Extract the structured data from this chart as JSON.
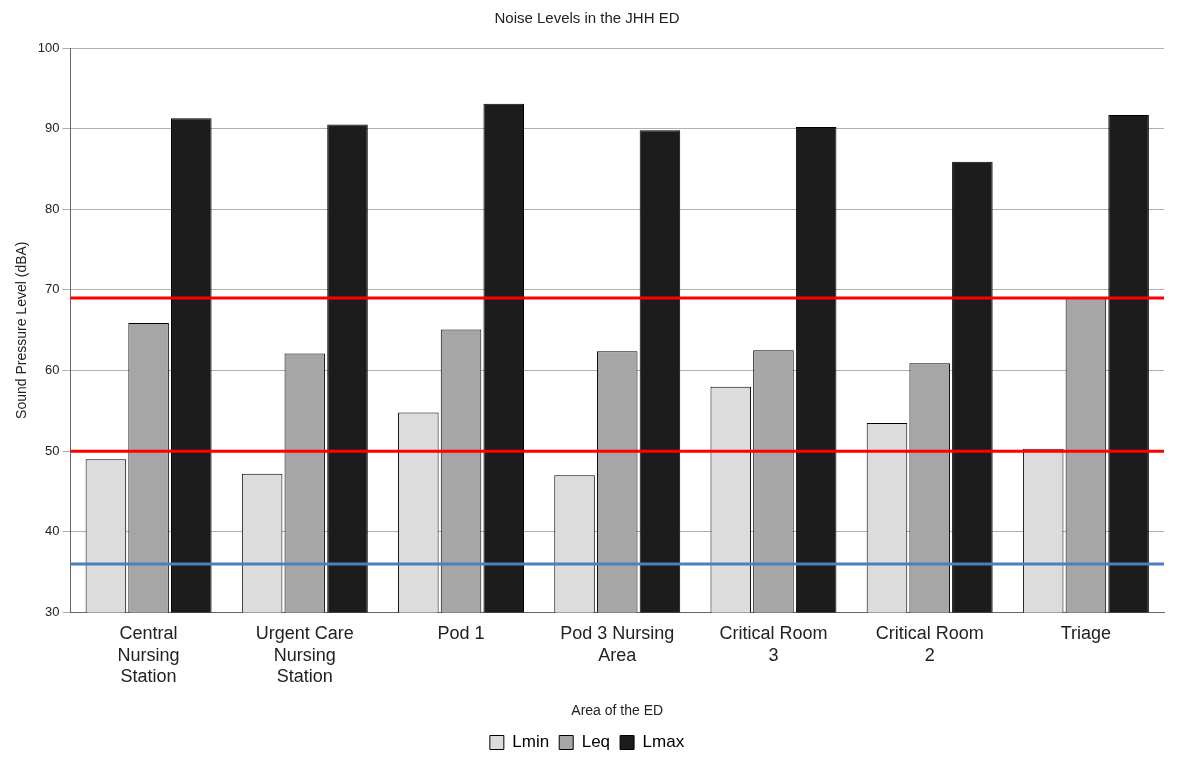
{
  "chart_data": {
    "type": "bar",
    "title": "Noise Levels in the JHH ED",
    "xlabel": "Area of the ED",
    "ylabel": "Sound Pressure Level (dBA)",
    "categories": [
      "Central Nursing Station",
      "Urgent Care Nursing Station",
      "Pod 1",
      "Pod 3 Nursing Area",
      "Critical Room 3",
      "Critical Room 2",
      "Triage"
    ],
    "series": [
      {
        "name": "Lmin",
        "color": "#dcdcdc",
        "values": [
          49,
          47.2,
          54.8,
          47,
          58,
          53.5,
          50.3
        ]
      },
      {
        "name": "Leq",
        "color": "#a6a6a6",
        "values": [
          65.9,
          62.1,
          65.1,
          62.4,
          62.5,
          60.9,
          69
        ]
      },
      {
        "name": "Lmax",
        "color": "#1c1c1c",
        "values": [
          91.3,
          90.5,
          93.1,
          89.8,
          90.2,
          85.9,
          91.7
        ]
      }
    ],
    "ylim": [
      30,
      100
    ],
    "yticks": [
      30,
      40,
      50,
      60,
      70,
      80,
      90,
      100
    ],
    "grid": "y",
    "legend": "bottom",
    "ref_lines": [
      {
        "axis": "y",
        "value": 69,
        "color": "#ff0000"
      },
      {
        "axis": "y",
        "value": 50,
        "color": "#ff0000"
      },
      {
        "axis": "y",
        "value": 36,
        "color": "#4a7fc1"
      }
    ]
  }
}
